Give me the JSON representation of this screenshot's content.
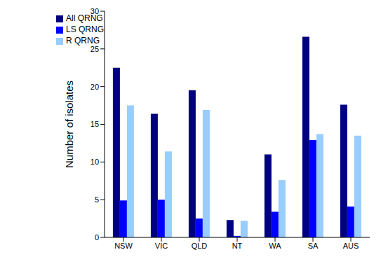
{
  "chart_data": {
    "type": "bar",
    "y_label": "Number of isolates",
    "categories": [
      "NSW",
      "VIC",
      "QLD",
      "NT",
      "WA",
      "SA",
      "AUS"
    ],
    "series": [
      {
        "name": "All QRNG",
        "color": "#000080",
        "values": [
          22.5,
          16.4,
          19.5,
          2.3,
          11.0,
          26.6,
          17.6
        ]
      },
      {
        "name": "LS QRNG",
        "color": "#0000FF",
        "values": [
          4.9,
          5.0,
          2.5,
          0.2,
          3.4,
          12.9,
          4.1
        ]
      },
      {
        "name": "R QRNG",
        "color": "#99CCFF",
        "values": [
          17.5,
          11.4,
          16.9,
          2.2,
          7.6,
          13.7,
          13.5
        ]
      }
    ],
    "ylim": [
      0,
      30
    ],
    "yticks": [
      0,
      5,
      10,
      15,
      20,
      25,
      30
    ],
    "grid": false,
    "legend": "upper left"
  }
}
